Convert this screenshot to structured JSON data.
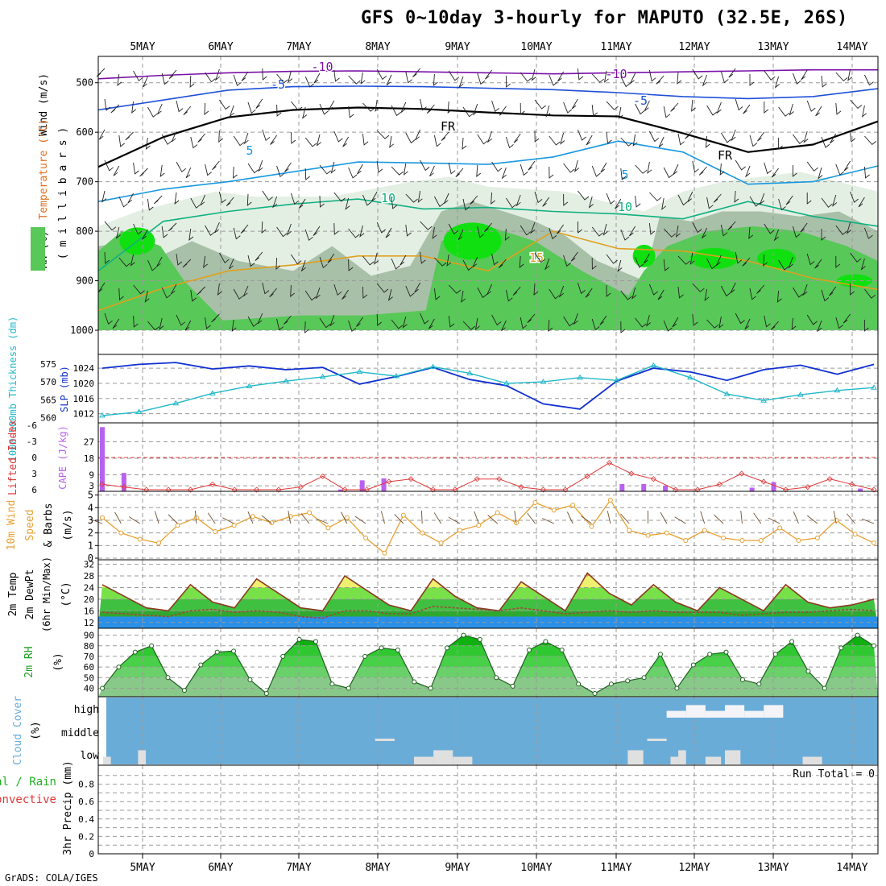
{
  "header": {
    "title": "GFS 0~10day 3-hourly for MAPUTO (32.5E, 26S)"
  },
  "footer": {
    "credit": "GrADS: COLA/IGES"
  },
  "colors": {
    "temp_cold": "#7a10a8",
    "temp_m5": "#1e50d8",
    "temp_0": "#000000",
    "temp_5": "#1898e0",
    "temp_10": "#10b080",
    "temp_15": "#e0a020",
    "temp_20": "#e07020",
    "temp_25": "#d01878",
    "rh_light": "#e4efe4",
    "rh_mid": "#a8c0a8",
    "rh_green": "#58c858",
    "rh_bright": "#10e010",
    "slp": "#1030d0",
    "thickness": "#20b8c8",
    "cape": "#b860f0",
    "lifted": "#e03838",
    "wind_speed": "#e8a030",
    "wind_barb": "#705030",
    "cloud_bg": "#6aacd8",
    "cloud_fill": "#e0e0e0",
    "grid": "#9a9a9a"
  },
  "chart_data": [
    {
      "type": "heatmap",
      "name": "upper",
      "ylabel_parts": [
        "Wind (m/s)",
        "Temperature (°C)",
        "RH (%)"
      ],
      "ylabel_units": "( m i l l i b a r s )",
      "ylim": [
        1000,
        450
      ],
      "yticks": [
        500,
        600,
        700,
        800,
        900,
        1000
      ],
      "x_ticks": [
        "5MAY",
        "6MAY",
        "7MAY",
        "8MAY",
        "9MAY",
        "10MAY",
        "11MAY",
        "12MAY",
        "13MAY",
        "14MAY"
      ],
      "contour_labels": [
        "-10",
        "-10",
        "-5",
        "-5",
        "FR",
        "FR",
        "5",
        "5",
        "10",
        "10",
        "15"
      ],
      "isotherms": [
        {
          "level": -10,
          "color": "#7a10a8",
          "p": [
            492,
            485,
            480,
            477,
            476,
            478,
            480,
            482,
            480,
            478,
            476,
            474,
            474
          ]
        },
        {
          "level": -5,
          "color": "#1e50d8",
          "p": [
            555,
            535,
            515,
            508,
            507,
            508,
            511,
            514,
            520,
            528,
            532,
            528,
            512
          ]
        },
        {
          "level": 0,
          "color": "#000000",
          "p": [
            670,
            610,
            570,
            555,
            550,
            553,
            560,
            566,
            568,
            602,
            640,
            625,
            578
          ]
        },
        {
          "level": 5,
          "color": "#1898e0",
          "p": [
            740,
            715,
            700,
            680,
            660,
            662,
            665,
            650,
            618,
            640,
            705,
            700,
            668
          ]
        },
        {
          "level": 10,
          "color": "#10b080",
          "p": [
            880,
            780,
            760,
            745,
            735,
            755,
            752,
            760,
            765,
            775,
            740,
            770,
            790
          ]
        },
        {
          "level": 15,
          "color": "#e0a020",
          "p": [
            960,
            915,
            880,
            868,
            850,
            850,
            880,
            800,
            835,
            840,
            860,
            895,
            918
          ]
        }
      ]
    },
    {
      "type": "line",
      "name": "slp-thickness",
      "ylabel_left": "1000-500mb Thickness (dm)",
      "ylabel_right": "SLP (mb)",
      "yticks_thickness": [
        560,
        565,
        570,
        575
      ],
      "yticks_slp": [
        1012,
        1016,
        1020,
        1024
      ],
      "series": [
        {
          "name": "SLP",
          "units": "mb",
          "values": [
            1024.0,
            1025.0,
            1025.5,
            1023.8,
            1024.6,
            1023.6,
            1024.2,
            1019.8,
            1021.8,
            1024.2,
            1021.0,
            1019.4,
            1014.6,
            1013.2,
            1020.6,
            1024.0,
            1023.0,
            1020.8,
            1023.6,
            1024.8,
            1022.4,
            1025.0
          ]
        },
        {
          "name": "Thickness",
          "units": "dm",
          "values": [
            560.6,
            561.6,
            564.0,
            566.8,
            568.8,
            570.2,
            571.4,
            572.8,
            571.6,
            574.2,
            572.4,
            569.6,
            570.0,
            571.2,
            570.4,
            574.6,
            571.2,
            566.6,
            564.8,
            566.4,
            567.6,
            568.4
          ]
        }
      ]
    },
    {
      "type": "bar",
      "name": "cape-li",
      "ylabel_left": "Lifted Index",
      "ylabel_right": "CAPE (J/kg)",
      "yticks_li": [
        -6,
        -3,
        0,
        3,
        6
      ],
      "yticks_cape": [
        3,
        9,
        18,
        27
      ],
      "series": [
        {
          "name": "CAPE",
          "units": "J/kg",
          "values": [
            35,
            10,
            0,
            0,
            0,
            0,
            0,
            0,
            0,
            0,
            0,
            1,
            6,
            7,
            0,
            0,
            0,
            0,
            0,
            0,
            0,
            0,
            0,
            0,
            4,
            4,
            3,
            0,
            0,
            0,
            2,
            5,
            0,
            0,
            0,
            1.5
          ]
        },
        {
          "name": "Lifted Index",
          "units": "",
          "values": [
            5,
            5.5,
            6,
            6,
            6,
            5,
            6,
            6,
            6,
            5.5,
            3.5,
            6,
            6,
            4.5,
            4,
            6,
            6,
            4,
            4,
            5.5,
            6,
            6,
            3.5,
            1,
            3,
            4,
            6,
            6,
            5,
            3,
            4.5,
            6,
            5.5,
            4,
            5,
            6
          ]
        }
      ]
    },
    {
      "type": "line",
      "name": "wind10m",
      "ylabel_parts": [
        "10m Wind",
        "Speed",
        "& Barbs"
      ],
      "ylabel_units": "(m/s)",
      "yticks": [
        0,
        1,
        2,
        3,
        4,
        5
      ],
      "series": [
        {
          "name": "Speed",
          "units": "m/s",
          "values": [
            3.2,
            2.0,
            1.5,
            1.2,
            2.6,
            3.2,
            2.1,
            2.6,
            3.3,
            2.8,
            3.3,
            3.6,
            2.4,
            3.2,
            1.6,
            0.4,
            3.4,
            2.0,
            1.2,
            2.2,
            2.6,
            3.6,
            2.8,
            4.4,
            3.8,
            4.2,
            2.5,
            4.6,
            2.2,
            1.8,
            2.0,
            1.4,
            2.2,
            1.6,
            1.4,
            1.4,
            2.4,
            1.4,
            1.6,
            3.0,
            1.9,
            1.2
          ]
        }
      ]
    },
    {
      "type": "area",
      "name": "temp2m",
      "ylabel_parts": [
        "2m Temp",
        "2m DewPt",
        "(6hr Min/Max)"
      ],
      "ylabel_units": "(°C)",
      "yticks": [
        12,
        16,
        20,
        24,
        28,
        32
      ],
      "series": [
        {
          "name": "2m Temp",
          "units": "°C",
          "values": [
            25,
            21,
            17,
            16,
            25,
            19,
            17,
            27,
            22,
            17,
            16,
            28,
            23,
            18,
            16,
            27,
            21,
            17,
            16,
            26,
            21,
            16,
            29,
            22,
            18,
            25,
            19,
            16,
            24,
            20,
            16,
            25,
            19,
            17,
            18,
            20
          ]
        },
        {
          "name": "2m DewPt",
          "units": "°C",
          "values": [
            15.5,
            15,
            14.5,
            14,
            16,
            16.5,
            15.5,
            16,
            15.5,
            14,
            13.5,
            16,
            16,
            15,
            15,
            17.5,
            17,
            16.5,
            16,
            17,
            16,
            15,
            15.5,
            16,
            15.5,
            16,
            15.5,
            15.5,
            15.5,
            14.5,
            15,
            15.5,
            15.5,
            16,
            16.5,
            16
          ]
        }
      ]
    },
    {
      "type": "area",
      "name": "rh2m",
      "ylabel": "2m RH",
      "ylabel_units": "(%)",
      "yticks": [
        40,
        50,
        60,
        70,
        80,
        90
      ],
      "series": [
        {
          "name": "2m RH",
          "units": "%",
          "values": [
            40,
            60,
            74,
            80,
            50,
            38,
            62,
            74,
            75,
            48,
            35,
            70,
            86,
            84,
            44,
            40,
            70,
            78,
            76,
            46,
            40,
            78,
            90,
            86,
            50,
            42,
            76,
            84,
            76,
            44,
            35,
            44,
            47,
            50,
            72,
            40,
            62,
            72,
            74,
            48,
            44,
            72,
            84,
            56,
            40,
            78,
            90,
            80
          ]
        }
      ]
    },
    {
      "type": "heatmap",
      "name": "cloud",
      "ylabel": "Cloud Cover",
      "ylabel_units": "(%)",
      "yticks": [
        "high",
        "middle",
        "low"
      ],
      "layers": [
        {
          "name": "high",
          "segments": [
            [
              7.25,
              7.5
            ],
            [
              7.5,
              7.75
            ],
            [
              7.75,
              8.0
            ],
            [
              8.0,
              8.25
            ],
            [
              8.25,
              8.5
            ],
            [
              8.5,
              8.75
            ]
          ]
        },
        {
          "name": "middle",
          "segments": [
            [
              3.5,
              3.75
            ],
            [
              7.0,
              7.25
            ]
          ]
        },
        {
          "name": "low",
          "segments": [
            [
              0.0,
              0.1
            ],
            [
              0.45,
              0.55
            ],
            [
              4.0,
              4.25
            ],
            [
              4.25,
              4.5
            ],
            [
              4.5,
              4.75
            ],
            [
              6.75,
              6.95
            ],
            [
              7.3,
              7.4
            ],
            [
              7.4,
              7.5
            ],
            [
              7.75,
              7.95
            ],
            [
              8.0,
              8.2
            ],
            [
              9.0,
              9.25
            ]
          ]
        }
      ]
    },
    {
      "type": "bar",
      "name": "precip",
      "ylabel_left": "Total / Rain",
      "ylabel_left_sub": "Convective",
      "ylabel": "3hr Precip (mm)",
      "yticks": [
        0,
        0.2,
        0.4,
        0.6,
        0.8
      ],
      "annotation": "Run Total = 0",
      "values": [],
      "x_ticks": [
        "5MAY",
        "6MAY",
        "7MAY",
        "8MAY",
        "9MAY",
        "10MAY",
        "11MAY",
        "12MAY",
        "13MAY",
        "14MAY"
      ]
    }
  ]
}
